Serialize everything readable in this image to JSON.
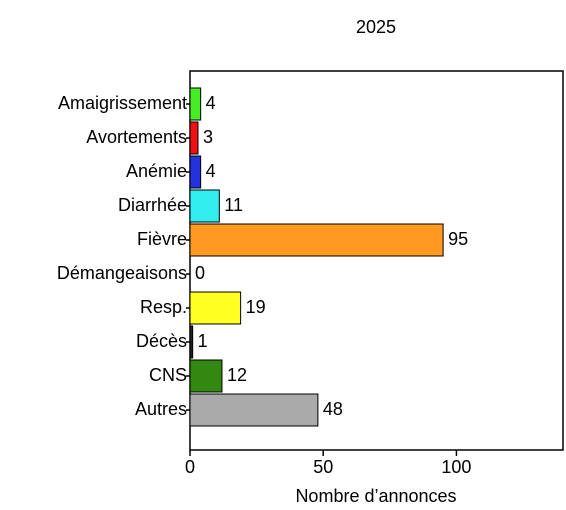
{
  "chart_data": {
    "type": "barh",
    "title": "2025",
    "x_label": "Nombre d’annonces",
    "categories": [
      "Amaigrissement",
      "Avortements",
      "Anémie",
      "Diarrhée",
      "Fièvre",
      "Démangeaisons",
      "Resp.",
      "Décès",
      "CNS",
      "Autres"
    ],
    "values": [
      4,
      3,
      4,
      11,
      95,
      0,
      19,
      1,
      12,
      48
    ],
    "colors": [
      "#44ee22",
      "#ee1111",
      "#2233dd",
      "#33eeee",
      "#ff9922",
      "#ff66cc",
      "#ffff22",
      "#222222",
      "#338811",
      "#aaaaaa"
    ],
    "xlim": [
      0,
      140
    ],
    "xticks": [
      0,
      50,
      100
    ]
  }
}
